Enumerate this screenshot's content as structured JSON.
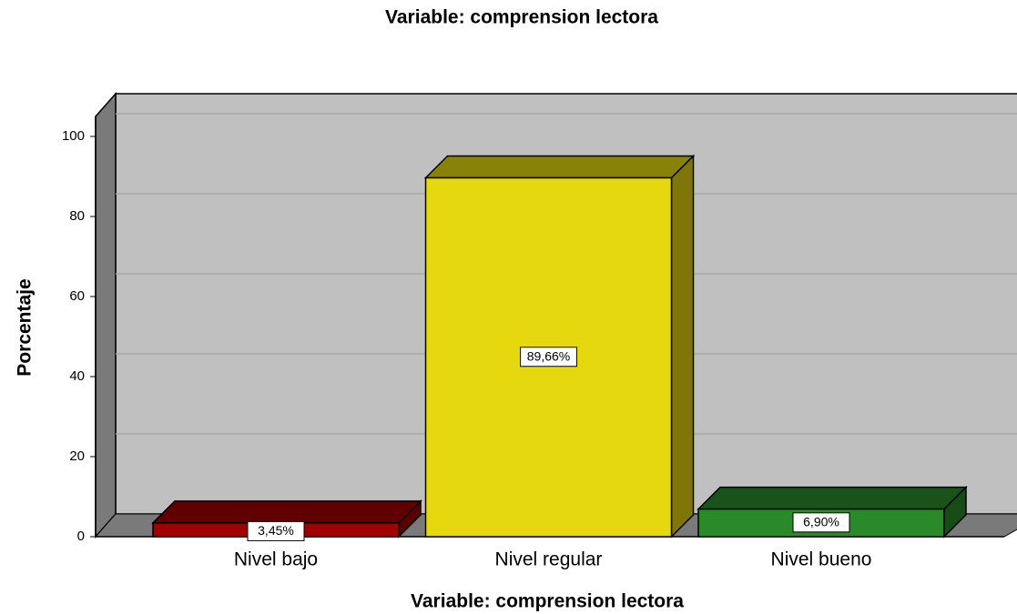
{
  "chart_data": {
    "type": "bar3d",
    "title": "Variable: comprension lectora",
    "x_label": "Variable: comprension lectora",
    "y_label": "Porcentaje",
    "categories": [
      "Nivel bajo",
      "Nivel regular",
      "Nivel bueno"
    ],
    "values": [
      3.45,
      89.66,
      6.9
    ],
    "value_labels": [
      "3,45%",
      "89,66%",
      "6,90%"
    ],
    "colors": [
      "#a00000",
      "#e5d80e",
      "#2a8a2a"
    ],
    "ylim": [
      0,
      105
    ],
    "yticks": [
      0,
      20,
      40,
      60,
      80,
      100
    ],
    "grid": true
  }
}
